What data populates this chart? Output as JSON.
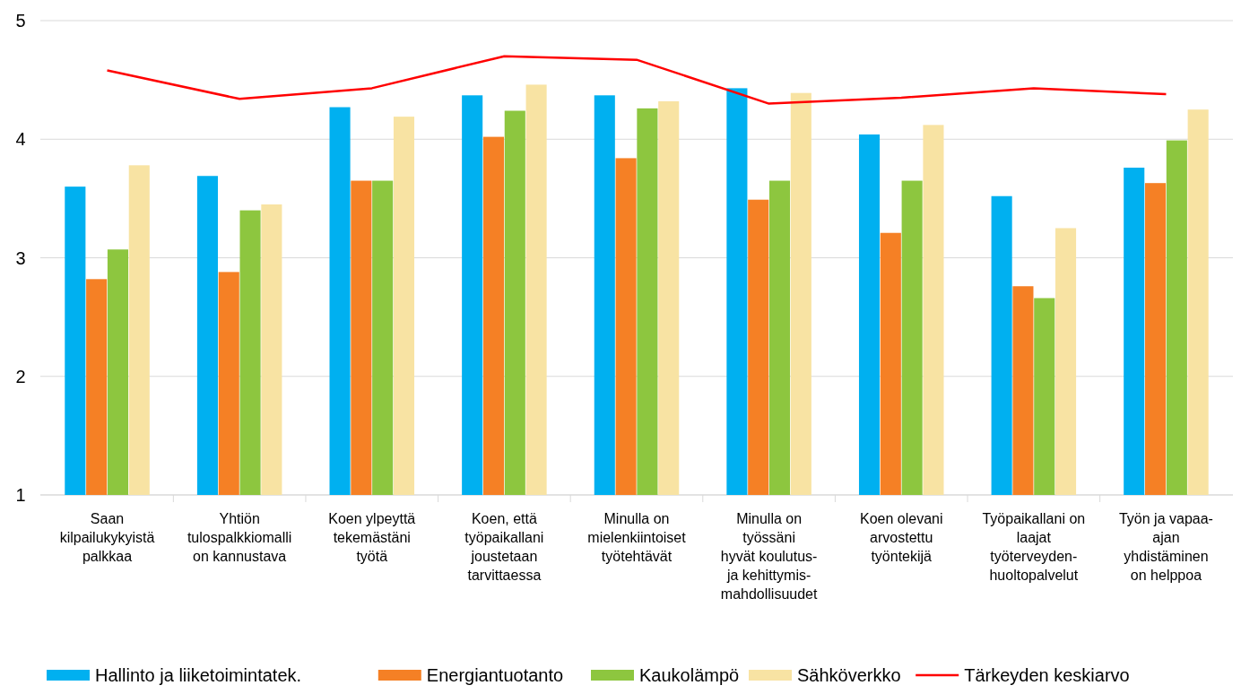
{
  "chart_data": {
    "type": "bar",
    "categories": [
      "Saan\nkilpailukykyistä\npalkkaa",
      "Yhtiön\ntulospalkkiomalli\non kannustava",
      "Koen ylpeyttä\ntekemästäni\ntyötä",
      "Koen, että\ntyöpaikallani\njoustetaan\ntarvittaessa",
      "Minulla on\nmielenkiintoiset\ntyötehtävät",
      "Minulla on\ntyössäni\nhyvät koulutus-\nja kehittymis-\nmahdollisuudet",
      "Koen olevani\narvostettu\ntyöntekijä",
      "Työpaikallani on\nlaajat\ntyöterveyden-\nhuoltopalvelut",
      "Työn ja vapaa-\najan\nyhdistäminen\non helppoa"
    ],
    "series": [
      {
        "name": "Hallinto ja liiketoimintatek.",
        "color": "#00b0f0",
        "values": [
          3.6,
          3.69,
          4.27,
          4.37,
          4.37,
          4.43,
          4.04,
          3.52,
          3.76
        ]
      },
      {
        "name": "Energiantuotanto",
        "color": "#f58025",
        "values": [
          2.82,
          2.88,
          3.65,
          4.02,
          3.84,
          3.49,
          3.21,
          2.76,
          3.63
        ]
      },
      {
        "name": "Kaukolämpö",
        "color": "#8dc63f",
        "values": [
          3.07,
          3.4,
          3.65,
          4.24,
          4.26,
          3.65,
          3.65,
          2.66,
          3.99
        ]
      },
      {
        "name": "Sähköverkko",
        "color": "#f8e3a3",
        "values": [
          3.78,
          3.45,
          4.19,
          4.46,
          4.32,
          4.39,
          4.12,
          3.25,
          4.25
        ]
      },
      {
        "name": "Tärkeyden keskiarvo",
        "type": "line",
        "color": "#ff0000",
        "values": [
          4.58,
          4.34,
          4.43,
          4.7,
          4.67,
          4.3,
          4.35,
          4.43,
          4.38
        ]
      }
    ],
    "ylim": [
      1,
      5
    ],
    "yticks": [
      1,
      2,
      3,
      4,
      5
    ],
    "grid": "y",
    "legend": "bottom",
    "marker": "none"
  }
}
